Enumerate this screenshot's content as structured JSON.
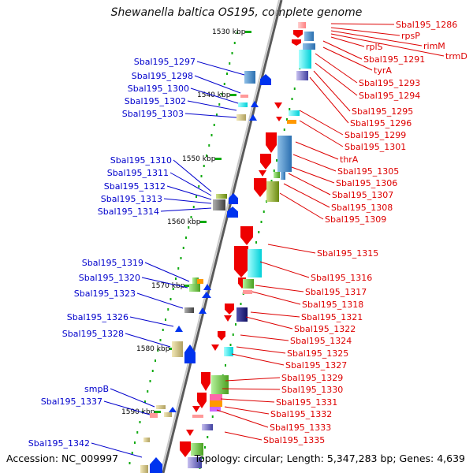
{
  "title": "Shewanella baltica OS195, complete genome",
  "footer": {
    "accession": "Accession: NC_009997",
    "stats": "Topology: circular; Length: 5,347,283 bp; Genes: 4,639"
  },
  "colors": {
    "left_label": "#0000cc",
    "right_label": "#dd0000",
    "axis": "#8c8c8c",
    "tick": "#11aa11",
    "gene_red": "#ee0000",
    "gene_blue": "#0033ee"
  },
  "scale_labels": [
    "1530 kbp",
    "1540 kbp",
    "1550 kbp",
    "1560 kbp",
    "1570 kbp",
    "1580 kbp",
    "1590 kbp"
  ],
  "left_labels": [
    "Sbal195_1297",
    "Sbal195_1298",
    "Sbal195_1300",
    "Sbal195_1302",
    "Sbal195_1303",
    "Sbal195_1310",
    "Sbal195_1311",
    "Sbal195_1312",
    "Sbal195_1313",
    "Sbal195_1314",
    "Sbal195_1319",
    "Sbal195_1320",
    "Sbal195_1323",
    "Sbal195_1326",
    "Sbal195_1328",
    "smpB",
    "Sbal195_1337",
    "Sbal195_1342"
  ],
  "right_labels": [
    "Sbal195_1286",
    "rpsP",
    "rimM",
    "trmD",
    "rplS",
    "Sbal195_1291",
    "tyrA",
    "Sbal195_1293",
    "Sbal195_1294",
    "Sbal195_1295",
    "Sbal195_1296",
    "Sbal195_1299",
    "Sbal195_1301",
    "thrA",
    "Sbal195_1305",
    "Sbal195_1306",
    "Sbal195_1307",
    "Sbal195_1308",
    "Sbal195_1309",
    "Sbal195_1315",
    "Sbal195_1316",
    "Sbal195_1317",
    "Sbal195_1318",
    "Sbal195_1321",
    "Sbal195_1322",
    "Sbal195_1324",
    "Sbal195_1325",
    "Sbal195_1327",
    "Sbal195_1329",
    "Sbal195_1330",
    "Sbal195_1331",
    "Sbal195_1332",
    "Sbal195_1333",
    "Sbal195_1335"
  ]
}
